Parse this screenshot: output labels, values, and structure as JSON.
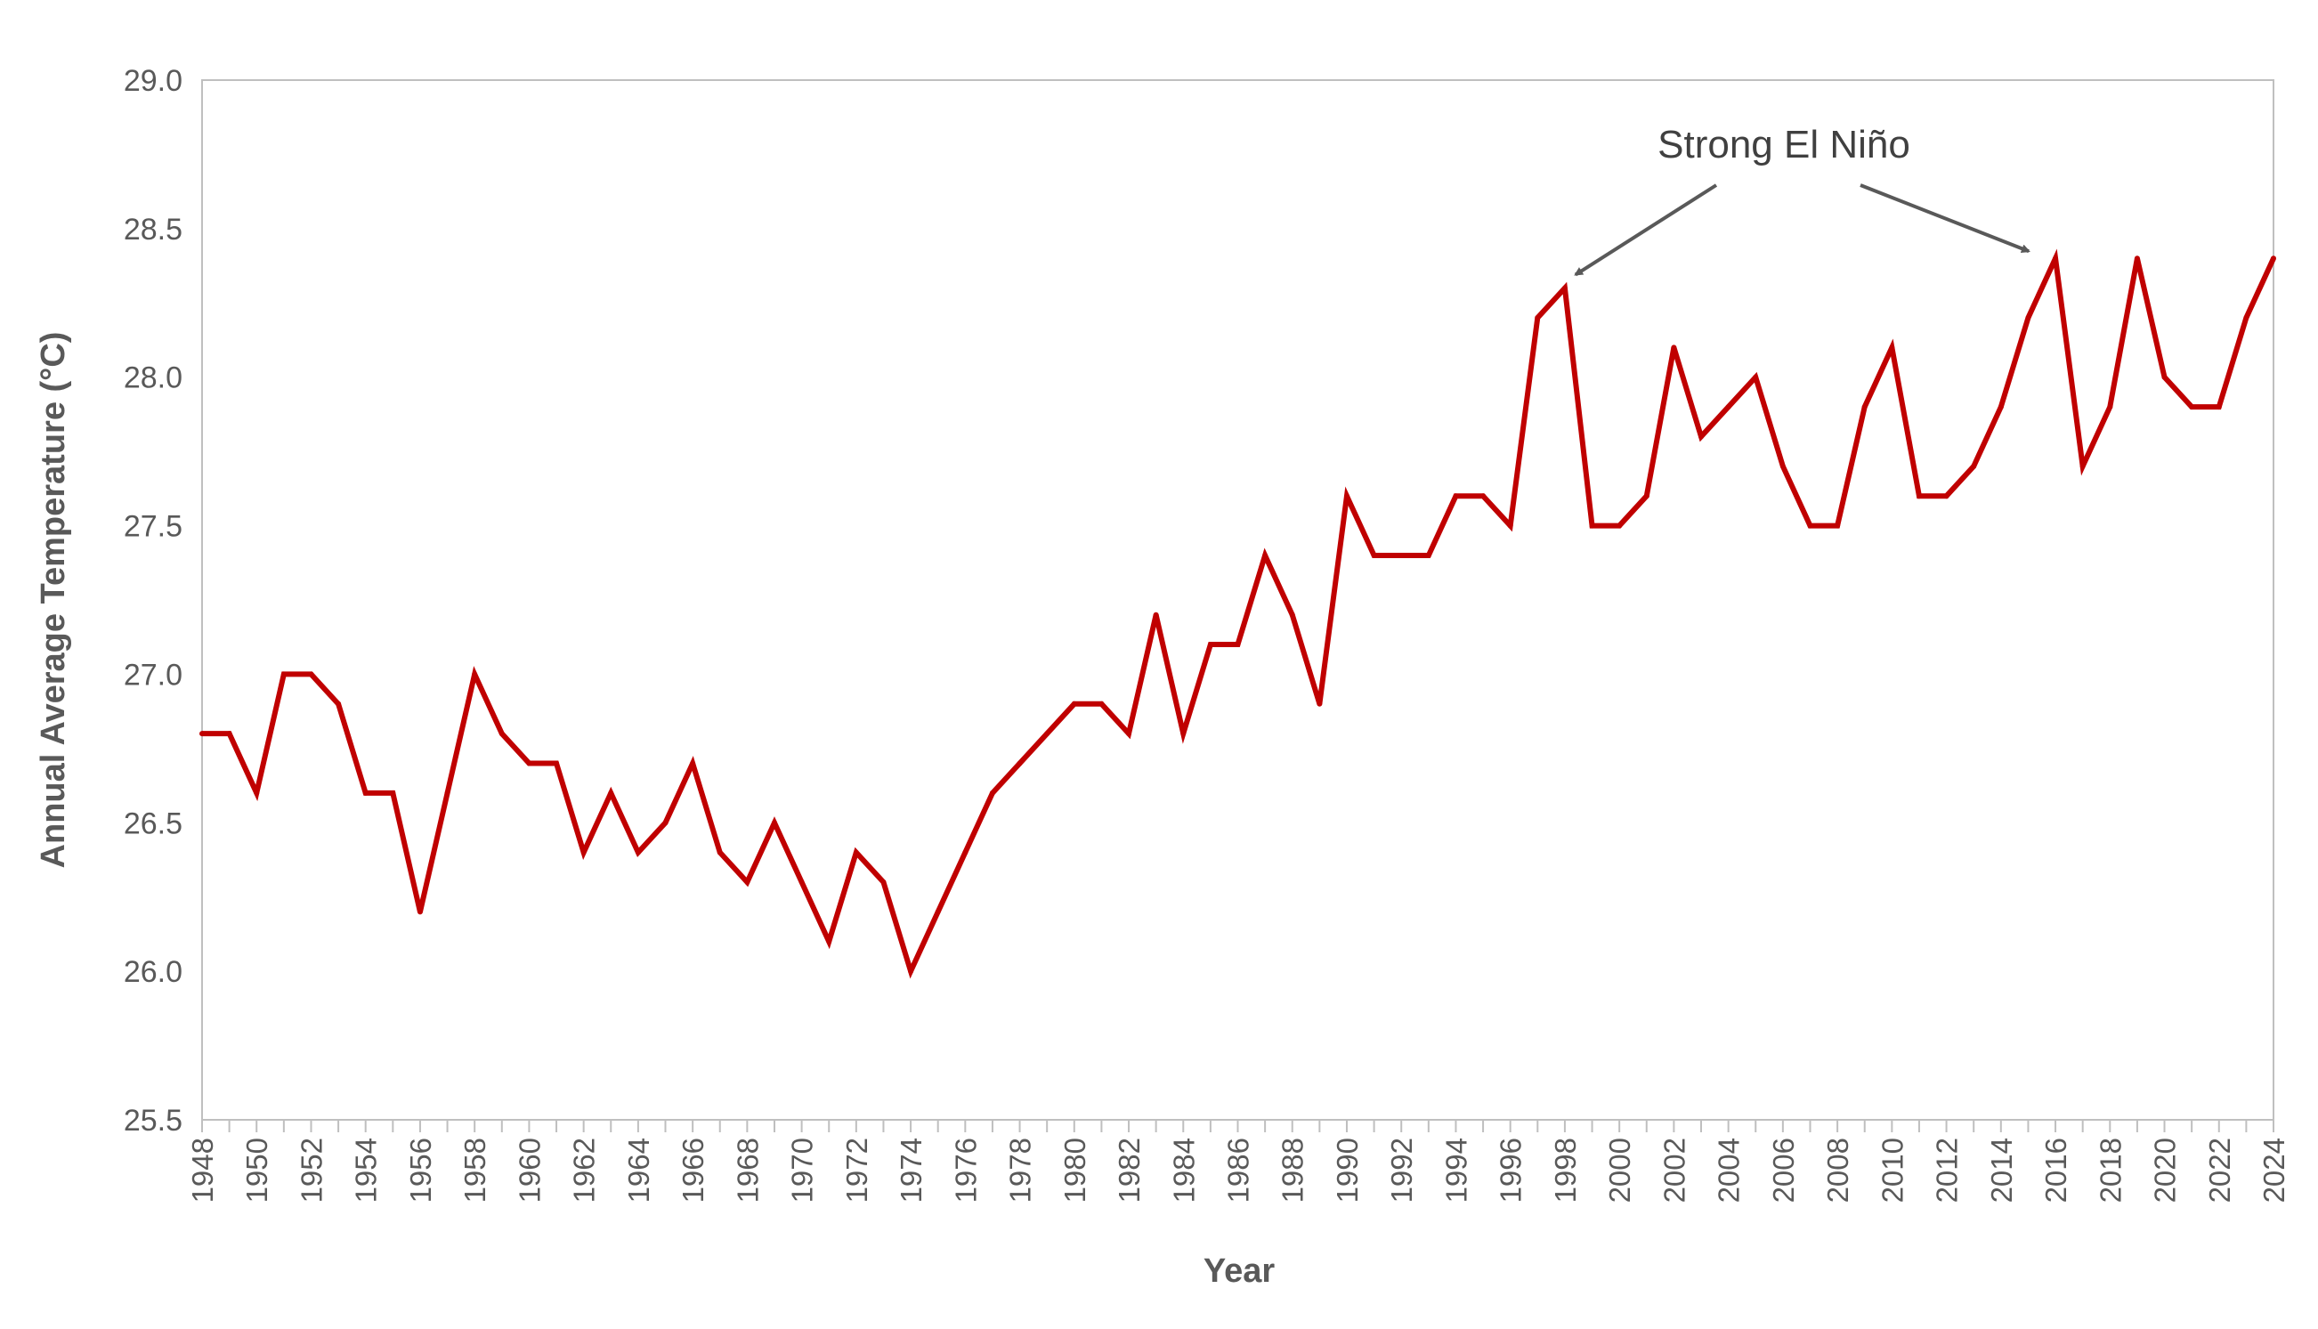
{
  "chart_data": {
    "type": "line",
    "title": "",
    "xlabel": "Year",
    "ylabel": "Annual Average Temperature (°C)",
    "xlim": [
      1948,
      2024
    ],
    "ylim": [
      25.5,
      29.0
    ],
    "y_ticks": [
      "25.5",
      "26.0",
      "26.5",
      "27.0",
      "27.5",
      "28.0",
      "28.5",
      "29.0"
    ],
    "x_tick_labels": [
      "1948",
      "1950",
      "1952",
      "1954",
      "1956",
      "1958",
      "1960",
      "1962",
      "1964",
      "1966",
      "1968",
      "1970",
      "1972",
      "1974",
      "1976",
      "1978",
      "1980",
      "1982",
      "1984",
      "1986",
      "1988",
      "1990",
      "1992",
      "1994",
      "1996",
      "1998",
      "2000",
      "2002",
      "2004",
      "2006",
      "2008",
      "2010",
      "2012",
      "2014",
      "2016",
      "2018",
      "2020",
      "2022",
      "2024"
    ],
    "grid": false,
    "legend": "none",
    "series": [
      {
        "color": "#c00000",
        "x": [
          1948,
          1949,
          1950,
          1951,
          1952,
          1953,
          1954,
          1955,
          1956,
          1957,
          1958,
          1959,
          1960,
          1961,
          1962,
          1963,
          1964,
          1965,
          1966,
          1967,
          1968,
          1969,
          1970,
          1971,
          1972,
          1973,
          1974,
          1975,
          1976,
          1977,
          1978,
          1979,
          1980,
          1981,
          1982,
          1983,
          1984,
          1985,
          1986,
          1987,
          1988,
          1989,
          1990,
          1991,
          1992,
          1993,
          1994,
          1995,
          1996,
          1997,
          1998,
          1999,
          2000,
          2001,
          2002,
          2003,
          2004,
          2005,
          2006,
          2007,
          2008,
          2009,
          2010,
          2011,
          2012,
          2013,
          2014,
          2015,
          2016,
          2017,
          2018,
          2019,
          2020,
          2021,
          2022,
          2023,
          2024
        ],
        "values": [
          26.8,
          26.8,
          26.6,
          27.0,
          27.0,
          26.9,
          26.6,
          26.6,
          26.2,
          26.6,
          27.0,
          26.8,
          26.7,
          26.7,
          26.4,
          26.6,
          26.4,
          26.5,
          26.7,
          26.4,
          26.3,
          26.5,
          26.3,
          26.1,
          26.4,
          26.3,
          26.0,
          26.2,
          26.4,
          26.6,
          26.7,
          26.8,
          26.9,
          26.9,
          26.8,
          27.2,
          26.8,
          27.1,
          27.1,
          27.4,
          27.2,
          26.9,
          27.6,
          27.4,
          27.4,
          27.4,
          27.6,
          27.6,
          27.5,
          28.2,
          28.3,
          27.5,
          27.5,
          27.6,
          28.1,
          27.8,
          27.9,
          28.0,
          27.7,
          27.5,
          27.5,
          27.9,
          28.1,
          27.6,
          27.6,
          27.7,
          27.9,
          28.2,
          28.4,
          27.7,
          27.9,
          28.4,
          28.0,
          27.9,
          27.9,
          28.2,
          28.4
        ]
      }
    ],
    "annotations": [
      {
        "text": "Strong El Niño",
        "arrows_to_x": [
          1998,
          2016
        ]
      }
    ]
  }
}
